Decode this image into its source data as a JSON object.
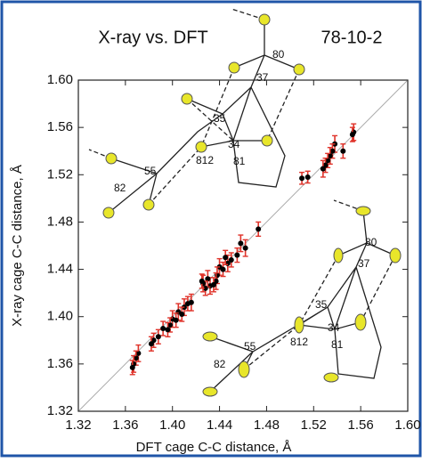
{
  "chart_data": {
    "type": "scatter",
    "title": "X-ray vs. DFT",
    "annotation": "78-10-2",
    "x_label": "DFT cage C-C distance, Å",
    "y_label": "X-ray cage C-C distance, Å",
    "xlim": [
      1.32,
      1.6
    ],
    "ylim": [
      1.32,
      1.6
    ],
    "xticks": [
      1.32,
      1.36,
      {
        "value": 1.4,
        "label": "1.40"
      },
      1.44,
      1.48,
      1.52,
      1.56,
      {
        "value": 1.6,
        "label": "1.60"
      }
    ],
    "yticks": [
      1.32,
      1.36,
      {
        "value": 1.4,
        "label": "1.40"
      },
      1.44,
      1.48,
      1.52,
      1.56,
      {
        "value": 1.6,
        "label": "1.60"
      }
    ],
    "x": [
      1.554,
      1.553,
      1.545,
      1.538,
      1.536,
      1.534,
      1.532,
      1.53,
      1.528,
      1.515,
      1.51,
      1.473,
      1.462,
      1.458,
      1.455,
      1.45,
      1.447,
      1.445,
      1.443,
      1.44,
      1.438,
      1.437,
      1.435,
      1.432,
      1.43,
      1.428,
      1.426,
      1.425,
      1.416,
      1.413,
      1.41,
      1.408,
      1.405,
      1.403,
      1.4,
      1.398,
      1.396,
      1.392,
      1.388,
      1.384,
      1.382,
      1.371,
      1.369,
      1.367,
      1.366
    ],
    "series": [
      {
        "color": "#000000",
        "error_color": "#e0332a",
        "values": [
          1.556,
          1.554,
          1.54,
          1.546,
          1.54,
          1.536,
          1.532,
          1.528,
          1.525,
          1.518,
          1.517,
          1.474,
          1.458,
          1.462,
          1.452,
          1.448,
          1.445,
          1.45,
          1.44,
          1.442,
          1.435,
          1.43,
          1.427,
          1.426,
          1.432,
          1.424,
          1.428,
          1.43,
          1.412,
          1.411,
          1.408,
          1.402,
          1.404,
          1.397,
          1.398,
          1.393,
          1.389,
          1.39,
          1.383,
          1.38,
          1.377,
          1.369,
          1.365,
          1.36,
          1.357
        ],
        "errors": [
          0.007,
          0.006,
          0.006,
          0.007,
          0.006,
          0.007,
          0.006,
          0.006,
          0.007,
          0.005,
          0.005,
          0.006,
          0.007,
          0.007,
          0.006,
          0.006,
          0.007,
          0.006,
          0.006,
          0.007,
          0.007,
          0.007,
          0.006,
          0.007,
          0.007,
          0.006,
          0.007,
          0.006,
          0.007,
          0.006,
          0.007,
          0.006,
          0.007,
          0.006,
          0.007,
          0.006,
          0.006,
          0.006,
          0.006,
          0.006,
          0.006,
          0.007,
          0.006,
          0.007,
          0.006
        ]
      }
    ],
    "diagonal": true
  },
  "insets": [
    {
      "labels": [
        "80",
        "37",
        "35",
        "34",
        "812",
        "81",
        "55",
        "82"
      ]
    },
    {
      "labels": [
        "80",
        "37",
        "35",
        "34",
        "812",
        "81",
        "55",
        "82"
      ]
    }
  ]
}
